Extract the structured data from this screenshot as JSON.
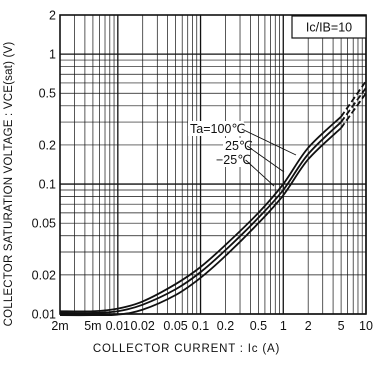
{
  "chart_data": {
    "type": "line",
    "title": "",
    "xlabel": "COLLECTOR  CURRENT : Ic  (A)",
    "ylabel": "COLLECTOR SATURATION VOLTAGE : VCE(sat)  (V)",
    "x_scale": "log",
    "y_scale": "log",
    "xlim": [
      0.002,
      10
    ],
    "ylim": [
      0.01,
      2
    ],
    "grid": true,
    "legend_position": "curves labelled at upper-right",
    "condition_label": "Ic/IB=10",
    "x_ticks": [
      {
        "v": 0.002,
        "label": "2m"
      },
      {
        "v": 0.005,
        "label": "5m"
      },
      {
        "v": 0.01,
        "label": "0.01"
      },
      {
        "v": 0.02,
        "label": "0.02"
      },
      {
        "v": 0.05,
        "label": "0.05"
      },
      {
        "v": 0.1,
        "label": "0.1"
      },
      {
        "v": 0.2,
        "label": "0.2"
      },
      {
        "v": 0.5,
        "label": "0.5"
      },
      {
        "v": 1,
        "label": "1"
      },
      {
        "v": 2,
        "label": "2"
      },
      {
        "v": 5,
        "label": "5"
      },
      {
        "v": 10,
        "label": "10"
      }
    ],
    "y_ticks": [
      {
        "v": 0.01,
        "label": "0.01"
      },
      {
        "v": 0.02,
        "label": "0.02"
      },
      {
        "v": 0.05,
        "label": "0.05"
      },
      {
        "v": 0.1,
        "label": "0.1"
      },
      {
        "v": 0.2,
        "label": "0.2"
      },
      {
        "v": 0.5,
        "label": "0.5"
      },
      {
        "v": 1,
        "label": "1"
      },
      {
        "v": 2,
        "label": "2"
      }
    ],
    "series": [
      {
        "name": "Ta=100℃",
        "x": [
          0.002,
          0.005,
          0.01,
          0.02,
          0.05,
          0.1,
          0.2,
          0.5,
          1,
          2,
          5,
          10
        ],
        "y": [
          0.0105,
          0.0105,
          0.011,
          0.0125,
          0.017,
          0.023,
          0.034,
          0.06,
          0.1,
          0.19,
          0.33,
          0.62
        ],
        "dash_from_x": 5
      },
      {
        "name": "25℃",
        "x": [
          0.002,
          0.005,
          0.01,
          0.02,
          0.05,
          0.1,
          0.2,
          0.5,
          1,
          2,
          5,
          10
        ],
        "y": [
          0.0102,
          0.0102,
          0.0105,
          0.0118,
          0.0155,
          0.021,
          0.031,
          0.055,
          0.09,
          0.17,
          0.3,
          0.55
        ],
        "dash_from_x": 5
      },
      {
        "name": "−25℃",
        "x": [
          0.002,
          0.005,
          0.01,
          0.02,
          0.05,
          0.1,
          0.2,
          0.5,
          1,
          2,
          5,
          10
        ],
        "y": [
          0.0098,
          0.0098,
          0.0099,
          0.0108,
          0.014,
          0.019,
          0.028,
          0.05,
          0.082,
          0.155,
          0.27,
          0.5
        ],
        "dash_from_x": 5
      }
    ],
    "curve_labels": [
      {
        "text": "Ta=100℃",
        "series": 0
      },
      {
        "text": "25℃",
        "series": 1
      },
      {
        "text": "−25℃",
        "series": 2
      }
    ]
  }
}
